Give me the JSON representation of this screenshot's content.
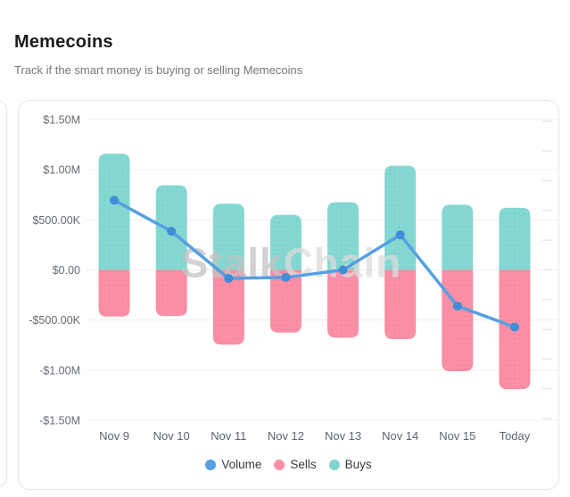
{
  "header": {
    "title": "Memecoins",
    "subtitle": "Track if the smart money is buying or selling Memecoins"
  },
  "watermark": {
    "part1": "Stalk",
    "part2": "Chain"
  },
  "colors": {
    "volume_line": "#55A0E3",
    "volume_marker": "#3E8DD8",
    "sells_bar": "#FA8FA5",
    "sells_dot": "#F87E98",
    "buys_bar": "#85D8D1",
    "buys_dot": "#6FCEC6",
    "grid": "#EFEFEF",
    "right_tick": "#E2E2E2",
    "watermark_part1": "#c3c3c3",
    "watermark_part2": "#dcdcdc"
  },
  "chart_data": {
    "type": "bar",
    "subtype": "stacked-bars-with-line-overlay",
    "title": "Memecoins smart money flow",
    "categories": [
      "Nov 9",
      "Nov 10",
      "Nov 11",
      "Nov 12",
      "Nov 13",
      "Nov 14",
      "Nov 15",
      "Today"
    ],
    "series": [
      {
        "name": "Volume",
        "type": "line",
        "color": "#55A0E3",
        "values": [
          695000,
          385000,
          -85000,
          -75000,
          0,
          350000,
          -360000,
          -570000
        ]
      },
      {
        "name": "Sells",
        "type": "bar",
        "color": "#FA8FA5",
        "values": [
          -465000,
          -460000,
          -745000,
          -625000,
          -675000,
          -690000,
          -1010000,
          -1190000
        ]
      },
      {
        "name": "Buys",
        "type": "bar",
        "color": "#85D8D1",
        "values": [
          1160000,
          845000,
          660000,
          550000,
          675000,
          1040000,
          650000,
          620000
        ]
      }
    ],
    "y_ticks": [
      {
        "value": 1500000,
        "label": "$1.50M"
      },
      {
        "value": 1000000,
        "label": "$1.00M"
      },
      {
        "value": 500000,
        "label": "$500.00K"
      },
      {
        "value": 0,
        "label": "$0.00"
      },
      {
        "value": -500000,
        "label": "-$500.00K"
      },
      {
        "value": -1000000,
        "label": "-$1.00M"
      },
      {
        "value": -1500000,
        "label": "-$1.50M"
      }
    ],
    "ylim": [
      -1500000,
      1500000
    ],
    "grid": true,
    "legend_position": "bottom",
    "legend": [
      {
        "name": "Volume",
        "color": "#55A0E3"
      },
      {
        "name": "Sells",
        "color": "#FA8FA5"
      },
      {
        "name": "Buys",
        "color": "#7FD6CE"
      }
    ]
  }
}
